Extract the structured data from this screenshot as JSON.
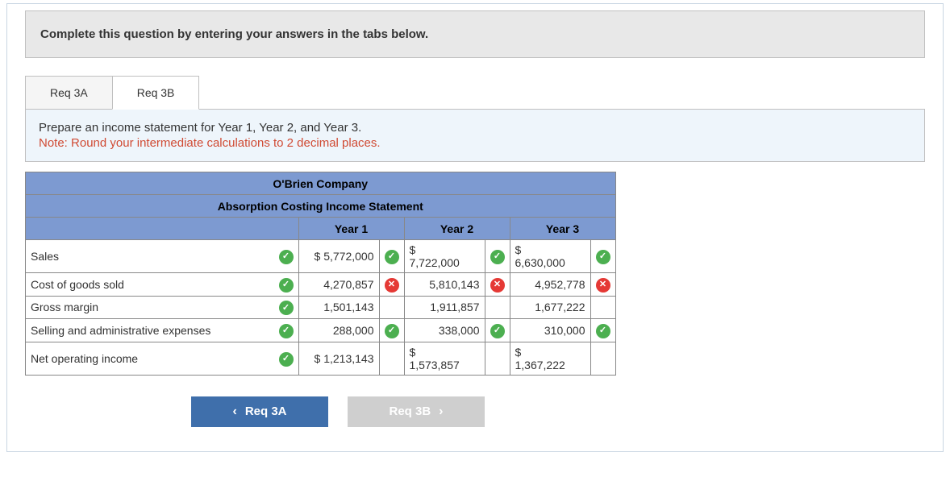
{
  "instruction": "Complete this question by entering your answers in the tabs below.",
  "tabs": {
    "a": "Req 3A",
    "b": "Req 3B"
  },
  "note": {
    "line1": "Prepare an income statement for Year 1, Year 2, and Year 3.",
    "line2": "Note: Round your intermediate calculations to 2 decimal places."
  },
  "table": {
    "company": "O'Brien Company",
    "title": "Absorption Costing Income Statement",
    "cols": {
      "y1": "Year 1",
      "y2": "Year 2",
      "y3": "Year 3"
    },
    "rows": {
      "sales": {
        "label": "Sales",
        "y1": "$ 5,772,000",
        "y1_mark": "check",
        "y2_d": "$",
        "y2_v": "7,722,000",
        "y2_mark": "check",
        "y3_d": "$",
        "y3_v": "6,630,000",
        "y3_mark": "check",
        "front_mark": "check"
      },
      "cogs": {
        "label": "Cost of goods sold",
        "y1": "4,270,857",
        "y1_mark": "cross",
        "y2": "5,810,143",
        "y2_mark": "cross",
        "y3": "4,952,778",
        "y3_mark": "cross",
        "front_mark": "check"
      },
      "gross": {
        "label": "Gross margin",
        "y1": "1,501,143",
        "y2": "1,911,857",
        "y3": "1,677,222",
        "front_mark": "check"
      },
      "sga": {
        "label": "Selling and administrative expenses",
        "y1": "288,000",
        "y1_mark": "check",
        "y2": "338,000",
        "y2_mark": "check",
        "y3": "310,000",
        "y3_mark": "check",
        "front_mark": "check"
      },
      "noi": {
        "label": "Net operating income",
        "y1": "$ 1,213,143",
        "y2_d": "$",
        "y2_v": "1,573,857",
        "y3_d": "$",
        "y3_v": "1,367,222",
        "front_mark": "check"
      }
    }
  },
  "nav": {
    "prev": "Req 3A",
    "next": "Req 3B"
  },
  "colors": {
    "header_blue": "#7d9ad1",
    "note_red": "#d04a33",
    "btn_blue": "#3f6fab",
    "btn_gray": "#cfcfcf",
    "check_green": "#4caf50",
    "cross_red": "#e53935"
  }
}
